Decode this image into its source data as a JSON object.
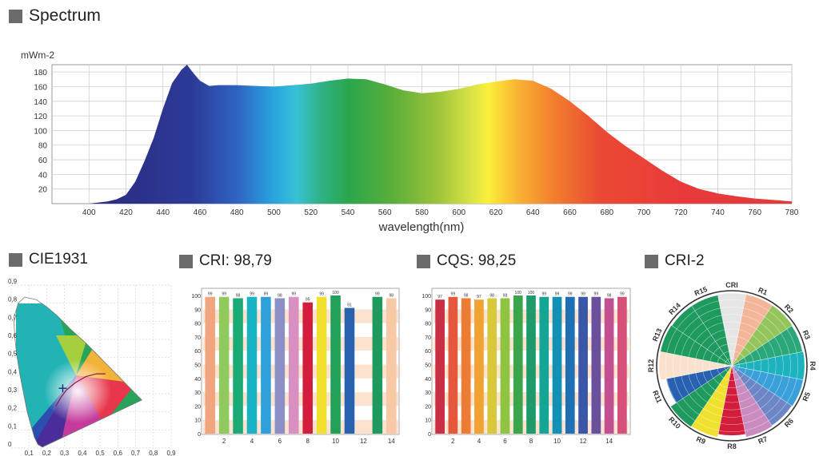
{
  "headers": {
    "spectrum": "Spectrum",
    "cie": "CIE1931",
    "cri": "CRI: 98,79",
    "cqs": "CQS: 98,25",
    "cri2": "CRI-2"
  },
  "chart_data": [
    {
      "type": "area",
      "title": "Spectrum",
      "ylabel": "mWm-2",
      "xlabel": "wavelength(nm)",
      "xlim": [
        380,
        780
      ],
      "ylim": [
        0,
        190
      ],
      "xticks": [
        400,
        420,
        440,
        460,
        480,
        500,
        520,
        540,
        560,
        580,
        600,
        620,
        640,
        660,
        680,
        700,
        720,
        740,
        760,
        780
      ],
      "yticks": [
        20,
        40,
        60,
        80,
        100,
        120,
        140,
        160,
        180
      ],
      "x": [
        380,
        390,
        400,
        410,
        415,
        420,
        425,
        430,
        435,
        440,
        445,
        450,
        453,
        456,
        460,
        465,
        470,
        480,
        490,
        500,
        510,
        520,
        530,
        540,
        550,
        560,
        570,
        580,
        590,
        600,
        610,
        620,
        630,
        640,
        650,
        660,
        670,
        680,
        690,
        700,
        710,
        720,
        730,
        740,
        750,
        760,
        770,
        780
      ],
      "y": [
        0,
        0,
        0,
        3,
        6,
        12,
        30,
        58,
        90,
        130,
        165,
        183,
        190,
        180,
        168,
        161,
        162,
        162,
        161,
        160,
        162,
        164,
        168,
        171,
        170,
        163,
        155,
        151,
        153,
        157,
        163,
        167,
        170,
        168,
        157,
        140,
        120,
        98,
        79,
        62,
        45,
        30,
        20,
        14,
        10,
        7,
        5,
        3
      ]
    },
    {
      "type": "scatter",
      "title": "CIE1931",
      "xticks": [
        "0",
        "0,1",
        "0,2",
        "0,3",
        "0,4",
        "0,5",
        "0,6",
        "0,7",
        "0,8",
        "0,9"
      ],
      "yticks": [
        "0",
        "0,1",
        "0,2",
        "0,3",
        "0,4",
        "0,5",
        "0,6",
        "0,7",
        "0,8",
        "0,9"
      ],
      "xlim": [
        0,
        0.9
      ],
      "ylim": [
        0,
        0.9
      ],
      "point": {
        "x": 0.29,
        "y": 0.33
      }
    },
    {
      "type": "bar",
      "title": "CRI: 98,79",
      "ylim": [
        0,
        100
      ],
      "yticks": [
        0,
        10,
        20,
        30,
        40,
        50,
        60,
        70,
        80,
        90,
        100
      ],
      "xticks": [
        "2",
        "4",
        "6",
        "8",
        "10",
        "12",
        "14"
      ],
      "values": [
        99,
        99,
        98,
        99,
        99,
        98,
        99,
        95,
        99,
        100,
        91,
        null,
        99,
        98
      ],
      "labels": [
        "99",
        "99",
        "98",
        "99",
        "99",
        "98",
        "99",
        "95",
        "99",
        "100",
        "91",
        "",
        "99",
        "98"
      ],
      "colors": [
        "#f0a57f",
        "#8fca5f",
        "#1aaa74",
        "#19b4c4",
        "#2f9fd9",
        "#8b8fc6",
        "#d98fc2",
        "#d21e3c",
        "#f1e12e",
        "#21a058",
        "#2861b0",
        "#ffffff",
        "#1f9a5f",
        "#f7c9a6"
      ]
    },
    {
      "type": "bar",
      "title": "CQS: 98,25",
      "ylim": [
        0,
        100
      ],
      "yticks": [
        0,
        10,
        20,
        30,
        40,
        50,
        60,
        70,
        80,
        90,
        100
      ],
      "xticks": [
        "2",
        "4",
        "6",
        "8",
        "10",
        "12",
        "14"
      ],
      "values": [
        97,
        99,
        98,
        97,
        98,
        98,
        100,
        100,
        99,
        99,
        99,
        99,
        99,
        98,
        99
      ],
      "labels": [
        "97",
        "99",
        "98",
        "97",
        "98",
        "98",
        "100",
        "100",
        "99",
        "99",
        "99",
        "99",
        "99",
        "98",
        "99"
      ],
      "colors": [
        "#c93046",
        "#e5583c",
        "#ec7b33",
        "#f0a232",
        "#d9c93a",
        "#8fc440",
        "#3aa54a",
        "#1e9a6b",
        "#15a597",
        "#1391b5",
        "#1f6fb5",
        "#3a56a8",
        "#6a4f9c",
        "#c24f8f",
        "#d6517a"
      ]
    },
    {
      "type": "pie",
      "title": "CRI-2",
      "labels": [
        "CRI",
        "R1",
        "R2",
        "R3",
        "R4",
        "R5",
        "R6",
        "R7",
        "R8",
        "R9",
        "R10",
        "R11",
        "R12",
        "R13",
        "R14",
        "R15"
      ],
      "values": [
        99,
        99,
        99,
        98,
        99,
        99,
        98,
        99,
        95,
        99,
        100,
        91,
        99,
        99,
        98,
        98
      ],
      "colors": [
        "#e6e6e6",
        "#f4b69a",
        "#96c45c",
        "#2aa87a",
        "#1cb2be",
        "#3aa0da",
        "#6c86c6",
        "#c98bc0",
        "#d21e3c",
        "#f0e12e",
        "#1f9a5f",
        "#2861b0",
        "#fbe2cf",
        "#1f9a5f",
        "#1f9a5f",
        "#1f9a5f"
      ]
    }
  ]
}
